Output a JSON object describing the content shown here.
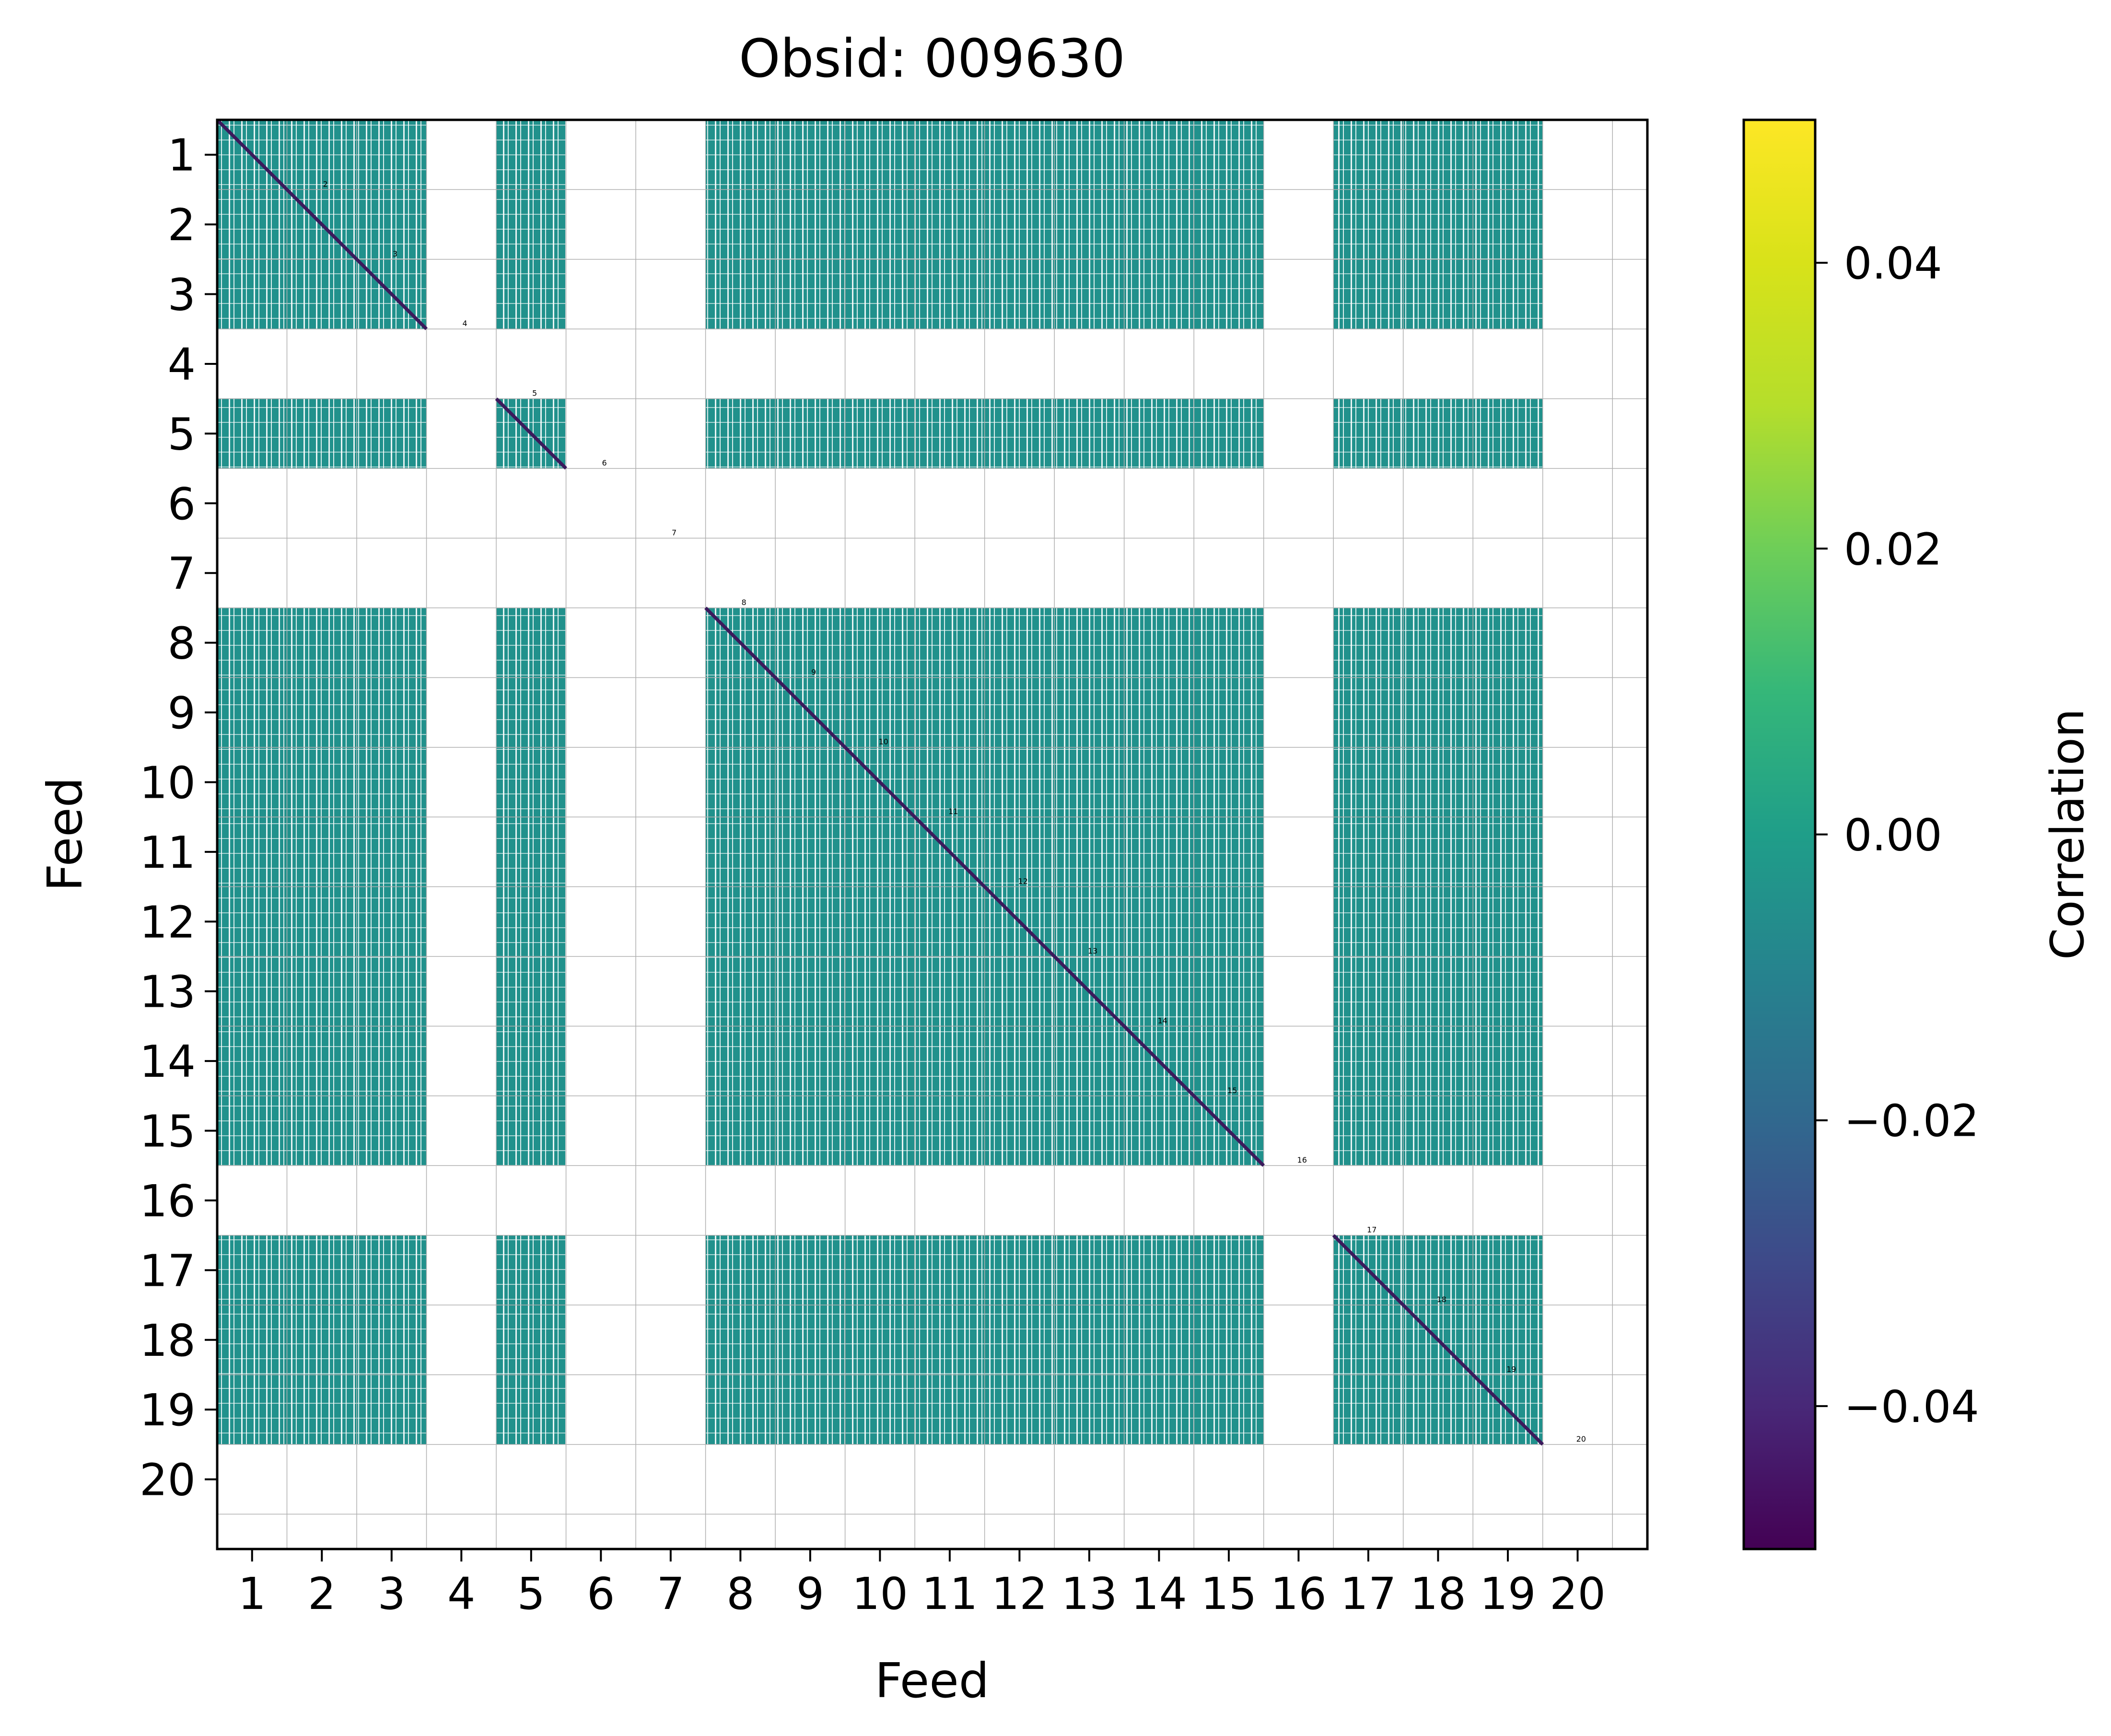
{
  "chart_data": {
    "type": "heatmap",
    "title": "Obsid: 009630",
    "xlabel": "Feed",
    "ylabel": "Feed",
    "x_ticks": [
      "1",
      "2",
      "3",
      "4",
      "5",
      "6",
      "7",
      "8",
      "9",
      "10",
      "11",
      "12",
      "13",
      "14",
      "15",
      "16",
      "17",
      "18",
      "19",
      "20"
    ],
    "y_ticks": [
      "1",
      "2",
      "3",
      "4",
      "5",
      "6",
      "7",
      "8",
      "9",
      "10",
      "11",
      "12",
      "13",
      "14",
      "15",
      "16",
      "17",
      "18",
      "19",
      "20"
    ],
    "feeds": [
      1,
      2,
      3,
      4,
      5,
      6,
      7,
      8,
      9,
      10,
      11,
      12,
      13,
      14,
      15,
      16,
      17,
      18,
      19,
      20
    ],
    "active_feeds": [
      1,
      2,
      3,
      5,
      8,
      9,
      10,
      11,
      12,
      13,
      14,
      15,
      17,
      18,
      19
    ],
    "diagonal_labels": [
      "1",
      "2",
      "3",
      "4",
      "5",
      "6",
      "7",
      "8",
      "9",
      "10",
      "11",
      "12",
      "13",
      "14",
      "15",
      "16",
      "17",
      "18",
      "19",
      "20"
    ],
    "cell_value": 0.0,
    "grid": true,
    "colorbar": {
      "label": "Correlation",
      "vmin": -0.05,
      "vmax": 0.05,
      "ticks": [
        -0.04,
        -0.02,
        0.0,
        0.02,
        0.04
      ],
      "tick_labels": [
        "−0.04",
        "−0.02",
        "0.00",
        "0.02",
        "0.04"
      ],
      "colormap": "viridis"
    },
    "colors": {
      "cell": "#21918c",
      "diagonal": "#3b1a5c",
      "grid": "#b0b0b0",
      "hatch": "#ffffff"
    }
  }
}
